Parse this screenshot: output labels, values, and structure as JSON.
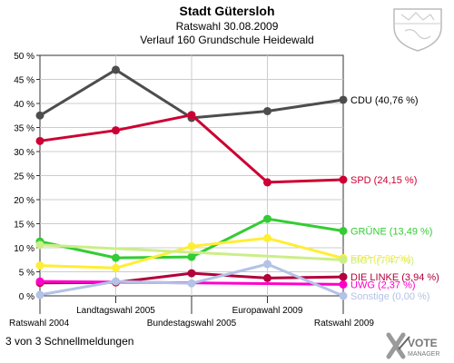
{
  "header": {
    "title": "Stadt Gütersloh",
    "subtitle": "Ratswahl 30.08.2009",
    "subtitle2": "Verlauf 160 Grundschule Heidewald"
  },
  "footer": {
    "text": "3 von 3 Schnellmeldungen"
  },
  "logo": {
    "line1": "VOTE",
    "line2": "MANAGER"
  },
  "chart_data": {
    "type": "line",
    "title": "Stadt Gütersloh",
    "x": [
      "Ratswahl 2004",
      "Landtagswahl 2005",
      "Bundestagswahl 2005",
      "Europawahl 2009",
      "Ratswahl 2009"
    ],
    "ylim": [
      0,
      50
    ],
    "yticks": [
      "0 %",
      "5 %",
      "10 %",
      "15 %",
      "20 %",
      "25 %",
      "30 %",
      "35 %",
      "40 %",
      "45 %",
      "50 %"
    ],
    "grid": true,
    "series": [
      {
        "name": "CDU",
        "label": "CDU (40,76 %)",
        "color": "#4d4d4d",
        "values": [
          37.5,
          47.0,
          37.0,
          38.4,
          40.76
        ]
      },
      {
        "name": "SPD",
        "label": "SPD (24,15 %)",
        "color": "#cc0033",
        "values": [
          32.2,
          34.4,
          37.6,
          23.6,
          24.15
        ]
      },
      {
        "name": "GRÜNE",
        "label": "GRÜNE (13,49 %)",
        "color": "#33cc33",
        "values": [
          11.3,
          7.9,
          8.1,
          16.0,
          13.49
        ]
      },
      {
        "name": "FDP",
        "label": "FDP (7,82 %)",
        "color": "#ffee33",
        "values": [
          6.3,
          5.8,
          10.3,
          12.0,
          7.82
        ]
      },
      {
        "name": "BfGT",
        "label": "BfGT (7,47 %)",
        "color": "#ccee88",
        "values": [
          10.6,
          null,
          null,
          null,
          7.47
        ]
      },
      {
        "name": "DIE LINKE",
        "label": "DIE LINKE (3,94 %)",
        "color": "#b3003b",
        "values": [
          2.7,
          2.8,
          4.7,
          3.7,
          3.94
        ]
      },
      {
        "name": "UWG",
        "label": "UWG (2,37 %)",
        "color": "#ff00cc",
        "values": [
          3.0,
          null,
          null,
          null,
          2.37
        ]
      },
      {
        "name": "Sonstige",
        "label": "Sonstige (0,00 %)",
        "color": "#b3c2e6",
        "values": [
          0.2,
          3.0,
          2.6,
          6.6,
          0.0
        ]
      }
    ]
  }
}
